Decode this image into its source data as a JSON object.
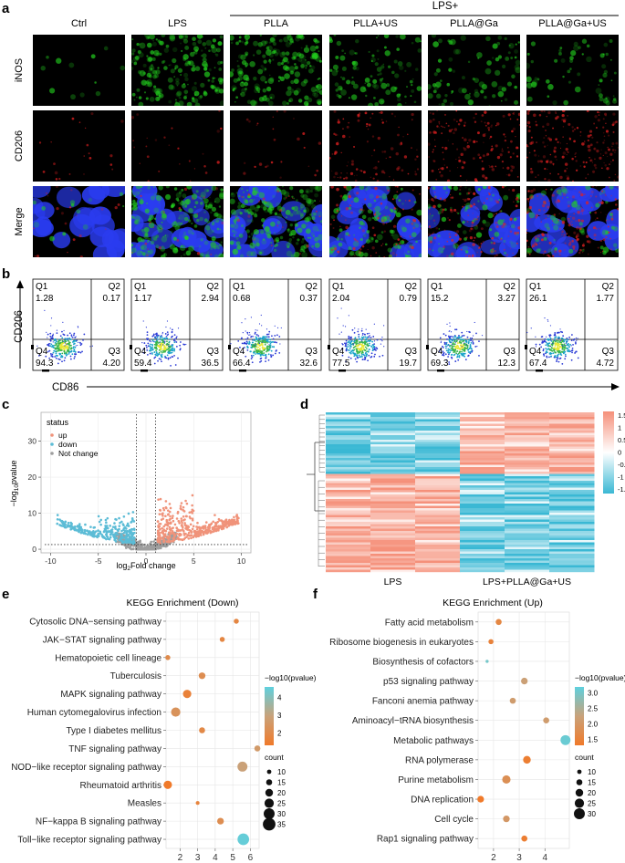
{
  "panel_letters": {
    "a": "a",
    "b": "b",
    "c": "c",
    "d": "d",
    "e": "e",
    "f": "f"
  },
  "panel_a": {
    "lps_plus_label": "LPS+",
    "columns": [
      "Ctrl",
      "LPS",
      "PLLA",
      "PLLA+US",
      "PLLA@Ga",
      "PLLA@Ga+US"
    ],
    "rows": [
      "iNOS",
      "CD206",
      "Merge"
    ],
    "green_intensity": [
      0.05,
      0.85,
      0.9,
      0.45,
      0.35,
      0.25
    ],
    "red_intensity": [
      0.08,
      0.1,
      0.1,
      0.4,
      0.6,
      0.75
    ],
    "colors": {
      "green": "#22d01e",
      "red": "#e02020",
      "blue": "#2a3cf0"
    }
  },
  "panel_b": {
    "ylabel": "CD206",
    "xlabel": "CD86",
    "quadrant_names": [
      "Q1",
      "Q2",
      "Q3",
      "Q4"
    ],
    "plots": [
      {
        "Q1": "1.28",
        "Q2": "0.17",
        "Q3": "4.20",
        "Q4": "94.3"
      },
      {
        "Q1": "1.17",
        "Q2": "2.94",
        "Q3": "36.5",
        "Q4": "59.4"
      },
      {
        "Q1": "0.68",
        "Q2": "0.37",
        "Q3": "32.6",
        "Q4": "66.4"
      },
      {
        "Q1": "2.04",
        "Q2": "0.79",
        "Q3": "19.7",
        "Q4": "77.5"
      },
      {
        "Q1": "15.2",
        "Q2": "3.27",
        "Q3": "12.3",
        "Q4": "69.3"
      },
      {
        "Q1": "26.1",
        "Q2": "1.77",
        "Q3": "4.72",
        "Q4": "67.4"
      }
    ]
  },
  "chart_data": [
    {
      "type": "scatter",
      "id": "volcano",
      "title": "",
      "xlabel": "log2Fold change",
      "ylabel": "-log10pvalue",
      "xlim": [
        -11,
        11
      ],
      "ylim": [
        -1,
        38
      ],
      "xticks": [
        "-10",
        "-5",
        "0",
        "5",
        "10"
      ],
      "yticks": [
        "0",
        "10",
        "20",
        "30"
      ],
      "legend": {
        "title": "status",
        "entries": [
          {
            "label": "up",
            "color": "#f0937a"
          },
          {
            "label": "down",
            "color": "#5cbcd6"
          },
          {
            "label": "Not change",
            "color": "#9e9e9e"
          }
        ]
      },
      "thresholds": {
        "fold_change": [
          -1,
          1
        ],
        "pvalue": 1.3
      }
    },
    {
      "type": "heatmap",
      "id": "heatmap",
      "groups": [
        "LPS",
        "LPS+PLLA@Ga+US"
      ],
      "scale_ticks": [
        "1.5",
        "1",
        "0.5",
        "0",
        "-0.5",
        "-1",
        "-1.5"
      ],
      "value_range": [
        -1.5,
        1.5
      ],
      "colors": {
        "low": "#3ab8d4",
        "mid": "#ffffff",
        "high": "#f5907a"
      }
    },
    {
      "type": "scatter",
      "id": "kegg_down",
      "title": "KEGG Enrichment (Down)",
      "xticks": [
        "2",
        "3",
        "4",
        "5",
        "6"
      ],
      "xlim": [
        1.2,
        6.5
      ],
      "pathways": [
        {
          "name": "Cytosolic DNA−sensing pathway",
          "x": 5.2,
          "logp": 1.8,
          "count": 12
        },
        {
          "name": "JAK−STAT signaling pathway",
          "x": 4.4,
          "logp": 1.8,
          "count": 12
        },
        {
          "name": "Hematopoietic cell lineage",
          "x": 1.3,
          "logp": 2.0,
          "count": 12
        },
        {
          "name": "Tuberculosis",
          "x": 3.25,
          "logp": 2.1,
          "count": 17
        },
        {
          "name": "MAPK signaling pathway",
          "x": 2.4,
          "logp": 1.6,
          "count": 22
        },
        {
          "name": "Human cytomegalovirus infection",
          "x": 1.75,
          "logp": 2.3,
          "count": 25
        },
        {
          "name": "Type I diabetes mellitus",
          "x": 3.25,
          "logp": 1.9,
          "count": 15
        },
        {
          "name": "TNF signaling pathway",
          "x": 6.4,
          "logp": 2.6,
          "count": 15
        },
        {
          "name": "NOD−like receptor signaling pathway",
          "x": 5.55,
          "logp": 2.9,
          "count": 27
        },
        {
          "name": "Rheumatoid arthritis",
          "x": 1.3,
          "logp": 1.3,
          "count": 22
        },
        {
          "name": "Measles",
          "x": 3.0,
          "logp": 1.7,
          "count": 8
        },
        {
          "name": "NF−kappa B signaling pathway",
          "x": 4.3,
          "logp": 2.1,
          "count": 17
        },
        {
          "name": "Toll−like receptor signaling pathway",
          "x": 5.6,
          "logp": 4.5,
          "count": 32
        }
      ],
      "legend_logp_title": "−log10(pvalue)",
      "logp_ticks": [
        "4",
        "3",
        "2"
      ],
      "logp_range": [
        1.3,
        4.6
      ],
      "count_title": "count",
      "count_ticks": [
        "10",
        "15",
        "20",
        "25",
        "30",
        "35"
      ]
    },
    {
      "type": "scatter",
      "id": "kegg_up",
      "title": "KEGG Enrichment (Up)",
      "xticks": [
        "2",
        "3",
        "4"
      ],
      "xlim": [
        1.4,
        4.95
      ],
      "pathways": [
        {
          "name": "Fatty acid metabolism",
          "x": 2.2,
          "logp": 1.6,
          "count": 15
        },
        {
          "name": "Ribosome biogenesis in eukaryotes",
          "x": 1.9,
          "logp": 1.5,
          "count": 12
        },
        {
          "name": "Biosynthesis of cofactors",
          "x": 1.75,
          "logp": 3.0,
          "count": 6
        },
        {
          "name": "p53 signaling pathway",
          "x": 3.2,
          "logp": 2.2,
          "count": 17
        },
        {
          "name": "Fanconi anemia pathway",
          "x": 2.75,
          "logp": 2.1,
          "count": 15
        },
        {
          "name": "Aminoacyl−tRNA biosynthesis",
          "x": 4.05,
          "logp": 2.1,
          "count": 15
        },
        {
          "name": "Metabolic pathways",
          "x": 4.8,
          "logp": 3.1,
          "count": 27
        },
        {
          "name": "RNA polymerase",
          "x": 3.3,
          "logp": 1.4,
          "count": 20
        },
        {
          "name": "Purine metabolism",
          "x": 2.5,
          "logp": 1.8,
          "count": 22
        },
        {
          "name": "DNA replication",
          "x": 1.5,
          "logp": 1.3,
          "count": 17
        },
        {
          "name": "Cell cycle",
          "x": 2.5,
          "logp": 2.0,
          "count": 17
        },
        {
          "name": "Rap1 signaling pathway",
          "x": 3.2,
          "logp": 1.4,
          "count": 15
        }
      ],
      "legend_logp_title": "−log10(pvalue)",
      "logp_ticks": [
        "3.0",
        "2.5",
        "2.0",
        "1.5"
      ],
      "logp_range": [
        1.3,
        3.2
      ],
      "count_title": "count",
      "count_ticks": [
        "10",
        "15",
        "20",
        "25",
        "30"
      ]
    }
  ]
}
